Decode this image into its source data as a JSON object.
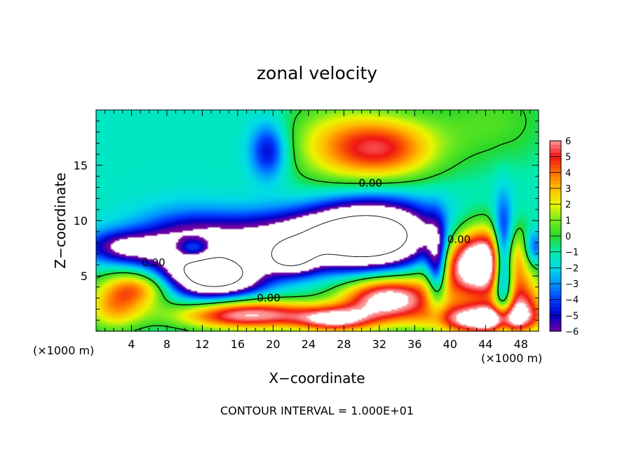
{
  "chart_data": {
    "type": "heatmap",
    "title": "zonal velocity",
    "xlabel": "X−coordinate",
    "ylabel": "Z−coordinate",
    "x_unit_left": "(×1000 m)",
    "x_unit_right": "(×1000 m)",
    "xlim": [
      0,
      50
    ],
    "ylim": [
      0,
      20
    ],
    "x_ticks": [
      4,
      8,
      12,
      16,
      20,
      24,
      28,
      32,
      36,
      40,
      44,
      48
    ],
    "y_ticks": [
      5,
      10,
      15
    ],
    "colorbar": {
      "range": [
        -6,
        6
      ],
      "ticks": [
        6,
        5,
        4,
        3,
        2,
        1,
        0,
        -1,
        -2,
        -3,
        -4,
        -5,
        -6
      ],
      "tick_labels": [
        "6",
        "5",
        "4",
        "3",
        "2",
        "1",
        "0",
        "−1",
        "−2",
        "−3",
        "−4",
        "−5",
        "−6"
      ]
    },
    "contour_label": "0.00",
    "contour_interval_text": "CONTOUR INTERVAL = 1.000E+01",
    "field_features": [
      {
        "x": 32.5,
        "z": 16.5,
        "value": 6.0,
        "sx": 4.5,
        "sz": 2.2
      },
      {
        "x": 26,
        "z": 17,
        "value": 2.5,
        "sx": 4,
        "sz": 3
      },
      {
        "x": 45,
        "z": 19,
        "value": 1.8,
        "sx": 5,
        "sz": 3
      },
      {
        "x": 19.5,
        "z": 16.3,
        "value": -4.0,
        "sx": 1.5,
        "sz": 1.8
      },
      {
        "x": 31,
        "z": 8.6,
        "value": -10.0,
        "sx": 5,
        "sz": 2.3
      },
      {
        "x": 22,
        "z": 8.5,
        "value": -5.5,
        "sx": 9,
        "sz": 1.6
      },
      {
        "x": 10,
        "z": 6.5,
        "value": -5.0,
        "sx": 4,
        "sz": 2.5
      },
      {
        "x": 3,
        "z": 7.6,
        "value": -4.5,
        "sx": 3,
        "sz": 1
      },
      {
        "x": 14,
        "z": 5.0,
        "value": -9.0,
        "sx": 3.5,
        "sz": 1.3
      },
      {
        "x": 22,
        "z": 6.6,
        "value": -7.0,
        "sx": 2,
        "sz": 1
      },
      {
        "x": 5,
        "z": 4.0,
        "value": 5.5,
        "sx": 3,
        "sz": 1.2
      },
      {
        "x": 2,
        "z": 2.0,
        "value": 4.0,
        "sx": 2.5,
        "sz": 1.5
      },
      {
        "x": 43.5,
        "z": 6.2,
        "value": 11.0,
        "sx": 3.5,
        "sz": 2.3
      },
      {
        "x": 33,
        "z": 3.0,
        "value": 9.0,
        "sx": 4,
        "sz": 1.6
      },
      {
        "x": 17,
        "z": 1.5,
        "value": 8.0,
        "sx": 6,
        "sz": 1.0
      },
      {
        "x": 44,
        "z": 1.0,
        "value": 9.0,
        "sx": 4,
        "sz": 1.0
      },
      {
        "x": 27,
        "z": 1.0,
        "value": 6.0,
        "sx": 3,
        "sz": 0.8
      },
      {
        "x": 11,
        "z": 7.5,
        "value": 5.0,
        "sx": 1.5,
        "sz": 0.7
      },
      {
        "x": 46,
        "z": 5.8,
        "value": -9.0,
        "sx": 0.8,
        "sz": 3.5
      },
      {
        "x": 38.5,
        "z": 6.0,
        "value": -6.0,
        "sx": 0.8,
        "sz": 2.5
      },
      {
        "x": 49.5,
        "z": 7.5,
        "value": -4.0,
        "sx": 0.8,
        "sz": 1.2
      },
      {
        "x": 48,
        "z": 2.5,
        "value": 5.0,
        "sx": 2,
        "sz": 1.5
      }
    ],
    "contour_label_positions": [
      {
        "x": 31,
        "z": 13.4
      },
      {
        "x": 6.5,
        "z": 6.2
      },
      {
        "x": 19.5,
        "z": 3.0
      },
      {
        "x": 41,
        "z": 8.3
      }
    ]
  }
}
